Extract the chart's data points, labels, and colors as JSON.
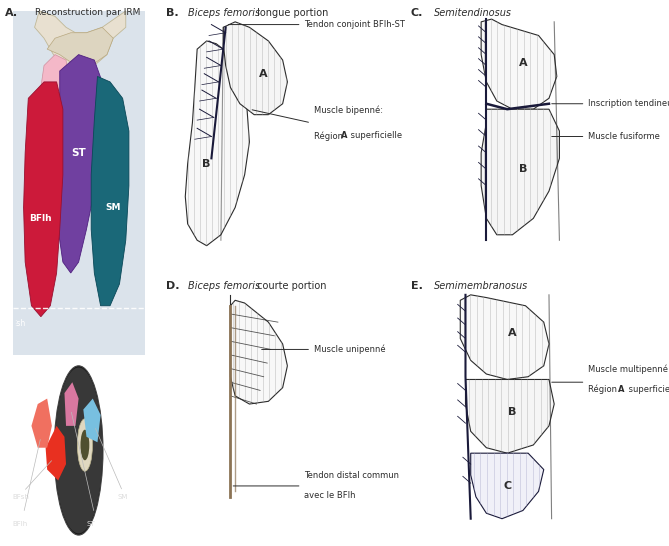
{
  "bg_color": "#ffffff",
  "panel_A_label": "A.",
  "panel_A_title": "Reconstruction par IRM",
  "panel_B_label": "B.",
  "panel_B_title": "Biceps femoris longue portion",
  "panel_C_label": "C.",
  "panel_C_title": "Semitendinosus",
  "panel_D_label": "D.",
  "panel_D_title": "Biceps femoris courte portion",
  "panel_E_label": "E.",
  "panel_E_title": "Semimembranosus",
  "annotation_B1": "Tendon conjoint BFIh-ST",
  "annotation_B2a": "Muscle bipenné:",
  "annotation_B2b": "Région ",
  "annotation_B2bold": "A",
  "annotation_B2c": " superficielle",
  "annotation_C1": "Inscription tendineuse",
  "annotation_C2": "Muscle fusiforme",
  "annotation_D1": "Muscle unipenné",
  "annotation_D2a": "Tendon distal commun",
  "annotation_D2b": "avec le BFIh",
  "annotation_E1a": "Muscle multipenné:",
  "annotation_E1b": "Région ",
  "annotation_E1bold": "A",
  "annotation_E1c": " superficielle",
  "colors": {
    "line": "#2c2c2c",
    "dark_navy": "#1a1a3a",
    "tendon_brown": "#8B7355",
    "hatch_color": "#aaaaaa",
    "muscle_face": "#f8f8f8",
    "muscle_face2": "#f0f0f0"
  }
}
